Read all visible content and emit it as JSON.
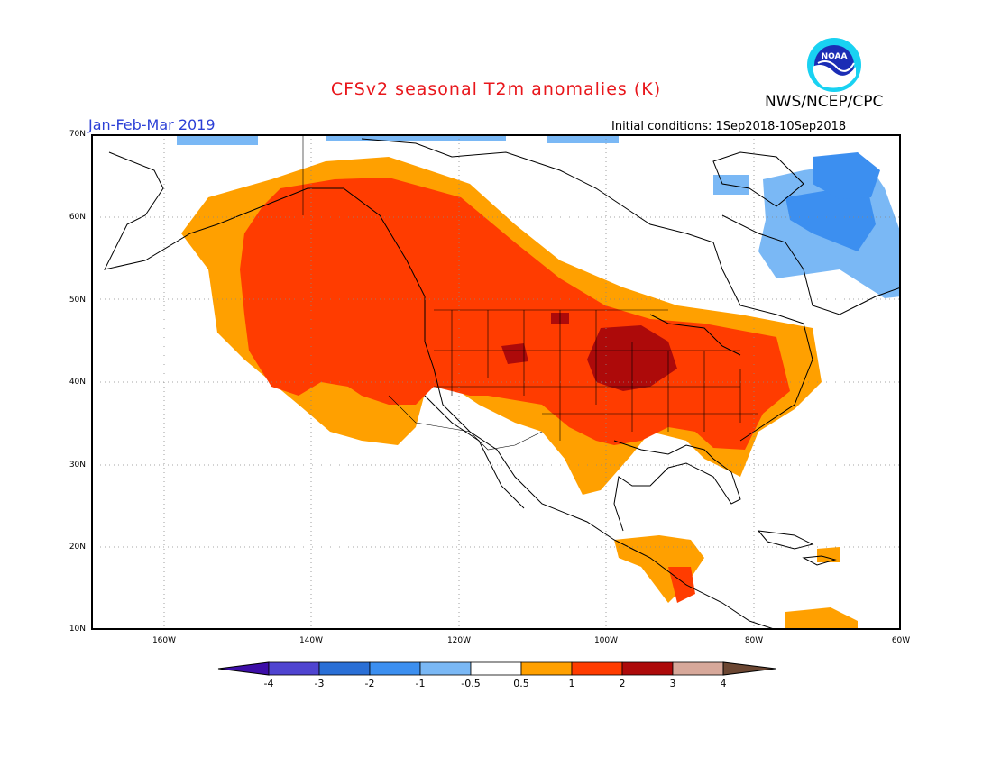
{
  "header": {
    "title": "CFSv2 seasonal T2m anomalies (K)",
    "agency": "NWS/NCEP/CPC",
    "logo_text": "NOAA",
    "period": "Jan-Feb-Mar 2019",
    "initial_conditions": "Initial conditions: 1Sep2018-10Sep2018"
  },
  "map": {
    "lat_labels": [
      "70N",
      "60N",
      "50N",
      "40N",
      "30N",
      "20N",
      "10N"
    ],
    "lon_labels": [
      "160W",
      "140W",
      "120W",
      "100W",
      "80W",
      "60W"
    ]
  },
  "colorbar": {
    "labels": [
      "-4",
      "-3",
      "-2",
      "-1",
      "-0.5",
      "0.5",
      "1",
      "2",
      "3",
      "4"
    ],
    "colors": [
      "#3d0ea8",
      "#4f44d0",
      "#2a6fd6",
      "#3c8ff0",
      "#7ab8f5",
      "#ffffff",
      "#ffa000",
      "#ff3c00",
      "#ad0a0a",
      "#d7a89a",
      "#6b4632"
    ]
  }
}
